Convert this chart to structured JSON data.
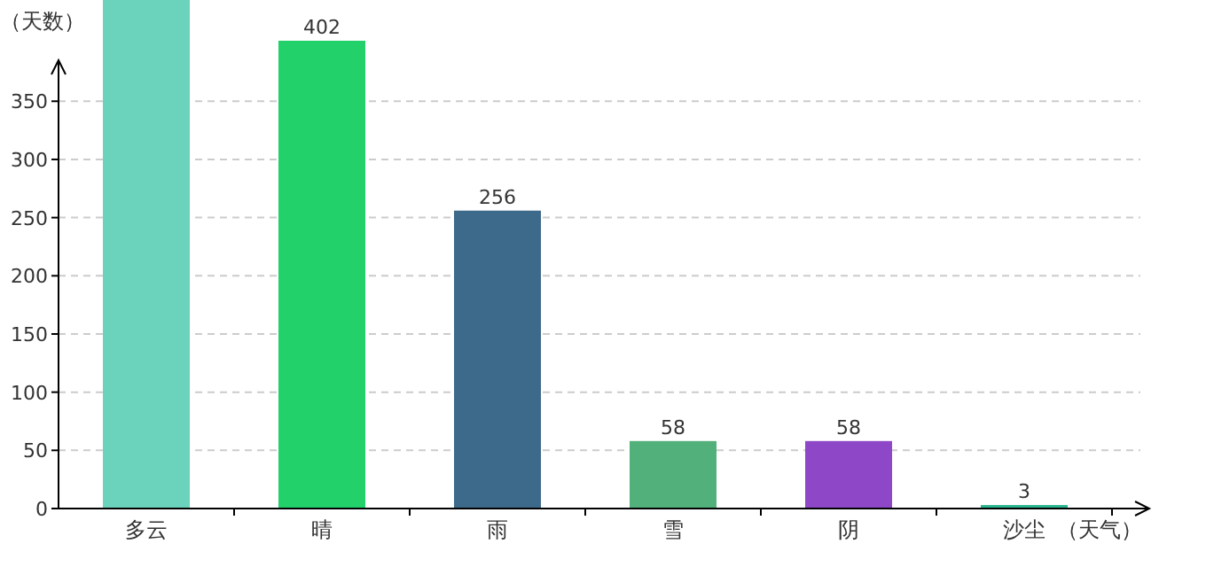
{
  "chart_data": {
    "type": "bar",
    "ylabel": "（天数）",
    "xlabel": "（天气）",
    "categories": [
      "多云",
      "晴",
      "雨",
      "雪",
      "阴",
      "沙尘"
    ],
    "values": [
      437,
      402,
      256,
      58,
      58,
      3
    ],
    "colors": [
      "#6bd3bb",
      "#22d16a",
      "#3d6a8a",
      "#52b07a",
      "#8e48c7",
      "#2ab58f"
    ],
    "value_labels": [
      null,
      "402",
      "256",
      "58",
      "58",
      "3"
    ],
    "ylim": [
      0,
      437
    ],
    "yticks": [
      0,
      50,
      100,
      150,
      200,
      250,
      300,
      350
    ],
    "grid": "y"
  }
}
